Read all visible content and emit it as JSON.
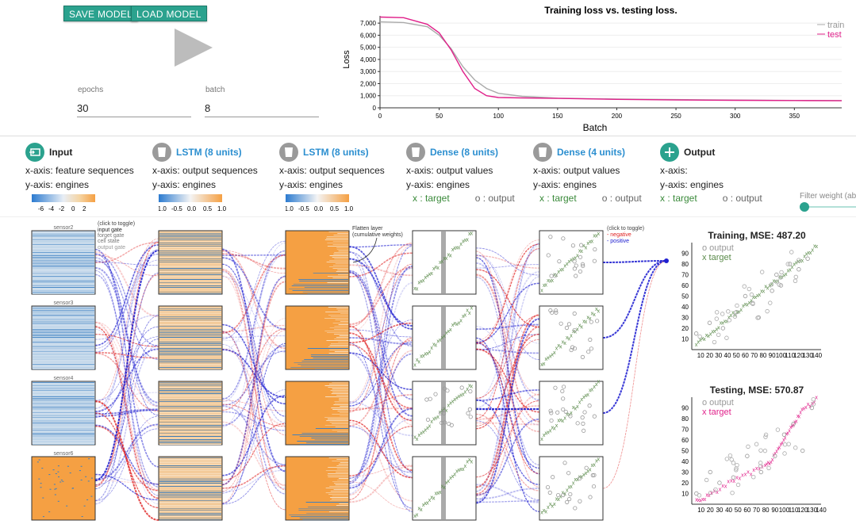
{
  "controls": {
    "save_label": "SAVE MODEL",
    "load_label": "LOAD MODEL",
    "epochs_label": "epochs",
    "epochs_value": "30",
    "batch_label": "batch",
    "batch_value": "8",
    "filter_label": "Filter weight (abs"
  },
  "loss_chart": {
    "title": "Training loss vs. testing loss.",
    "xlabel": "Batch",
    "ylabel": "Loss",
    "y_ticks": [
      "0",
      "1,000",
      "2,000",
      "3,000",
      "4,000",
      "5,000",
      "6,000",
      "7,000"
    ],
    "x_ticks": [
      "0",
      "50",
      "100",
      "150",
      "200",
      "250",
      "300",
      "350"
    ],
    "legend_train": "train",
    "legend_test": "test",
    "train_color": "#aaaaaa",
    "test_color": "#e0208a"
  },
  "chart_data": [
    {
      "type": "line",
      "title": "Training loss vs. testing loss.",
      "xlabel": "Batch",
      "ylabel": "Loss",
      "xlim": [
        0,
        390
      ],
      "ylim": [
        0,
        7600
      ],
      "series": [
        {
          "name": "train",
          "x": [
            0,
            20,
            40,
            50,
            60,
            70,
            80,
            90,
            100,
            120,
            150,
            200,
            250,
            300,
            350,
            390
          ],
          "values": [
            7100,
            7050,
            6700,
            6000,
            4900,
            3400,
            2300,
            1600,
            1200,
            950,
            800,
            720,
            680,
            640,
            610,
            600
          ]
        },
        {
          "name": "test",
          "x": [
            0,
            20,
            40,
            50,
            60,
            70,
            80,
            90,
            100,
            120,
            150,
            200,
            250,
            300,
            350,
            390
          ],
          "values": [
            7500,
            7450,
            6900,
            6200,
            4800,
            3000,
            1600,
            1000,
            850,
            820,
            780,
            700,
            650,
            620,
            600,
            580
          ]
        }
      ]
    },
    {
      "type": "scatter",
      "title": "Training, MSE: 487.20",
      "xlim": [
        0,
        145
      ],
      "ylim": [
        0,
        100
      ],
      "series": [
        {
          "name": "output",
          "x": [
            5,
            20,
            35,
            50,
            60,
            75,
            90,
            95,
            100,
            110,
            120,
            130
          ],
          "values": [
            15,
            25,
            20,
            35,
            50,
            30,
            55,
            70,
            60,
            80,
            75,
            85
          ]
        },
        {
          "name": "target",
          "x": [
            5,
            20,
            35,
            50,
            65,
            80,
            95,
            110,
            125,
            140
          ],
          "values": [
            5,
            15,
            25,
            35,
            45,
            55,
            65,
            75,
            85,
            97
          ]
        }
      ]
    },
    {
      "type": "scatter",
      "title": "Testing, MSE: 570.87",
      "xlim": [
        0,
        140
      ],
      "ylim": [
        0,
        100
      ],
      "series": [
        {
          "name": "output",
          "x": [
            5,
            20,
            30,
            45,
            60,
            75,
            90,
            100,
            110,
            120,
            130
          ],
          "values": [
            10,
            30,
            20,
            25,
            45,
            30,
            45,
            65,
            75,
            50,
            90
          ]
        },
        {
          "name": "target",
          "x": [
            5,
            20,
            40,
            60,
            80,
            90,
            100,
            110,
            120,
            135
          ],
          "values": [
            3,
            8,
            20,
            28,
            35,
            45,
            60,
            75,
            88,
            98
          ]
        }
      ]
    }
  ],
  "layers": [
    {
      "icon": "input-icon",
      "title": "Input",
      "x_axis": "x-axis: feature sequences",
      "y_axis": "y-axis: engines",
      "scale": [
        "-6",
        "-4",
        "-2",
        "0",
        "2"
      ]
    },
    {
      "icon": "lstm-icon",
      "title": "LSTM (8 units)",
      "x_axis": "x-axis: output sequences",
      "y_axis": "y-axis: engines",
      "scale": [
        "-1.0",
        "-0.5",
        "0.0",
        "0.5",
        "1.0"
      ]
    },
    {
      "icon": "lstm-icon",
      "title": "LSTM (8 units)",
      "x_axis": "x-axis: output sequences",
      "y_axis": "y-axis: engines",
      "scale": [
        "-1.0",
        "-0.5",
        "0.0",
        "0.5",
        "1.0"
      ]
    },
    {
      "icon": "dense-icon",
      "title": "Dense (8 units)",
      "x_axis": "x-axis: output values",
      "y_axis": "y-axis: engines",
      "legend_target": "x : target",
      "legend_output": "o : output"
    },
    {
      "icon": "dense-icon",
      "title": "Dense (4 units)",
      "x_axis": "x-axis: output values",
      "y_axis": "y-axis: engines",
      "legend_target": "x : target",
      "legend_output": "o : output"
    },
    {
      "icon": "add-icon",
      "title": "Output",
      "x_axis": "x-axis:",
      "y_axis": "y-axis: engines",
      "legend_target": "x : target",
      "legend_output": "o : output"
    }
  ],
  "sensors": [
    "sensor2",
    "sensor3",
    "sensor4",
    "sensor6"
  ],
  "gate_legend": {
    "toggle": "(click to toggle)",
    "input_gate": "input gate",
    "forget_gate": "forget gate",
    "cell_state": "cell state",
    "output_gate": "output gate"
  },
  "flatten_note": {
    "line1": "Flatten layer",
    "line2": "(cumulative weights)"
  },
  "sign_legend": {
    "toggle": "(click to toggle)",
    "negative": "negative",
    "positive": "positive"
  },
  "scatter_train": {
    "title": "Training, MSE: 487.20",
    "legend_output": "output",
    "legend_target": "target",
    "y_ticks": [
      "10",
      "20",
      "30",
      "40",
      "50",
      "60",
      "70",
      "80",
      "90"
    ],
    "x_ticks": [
      "10",
      "20",
      "30",
      "40",
      "50",
      "60",
      "70",
      "80",
      "90",
      "100",
      "110",
      "120",
      "130",
      "140"
    ]
  },
  "scatter_test": {
    "title": "Testing, MSE: 570.87",
    "legend_output": "output",
    "legend_target": "target",
    "y_ticks": [
      "10",
      "20",
      "30",
      "40",
      "50",
      "60",
      "70",
      "80",
      "90"
    ],
    "x_ticks": [
      "10",
      "20",
      "30",
      "40",
      "50",
      "60",
      "70",
      "80",
      "90",
      "100",
      "110",
      "120",
      "130",
      "140"
    ]
  },
  "colors": {
    "accent": "#2ba28e",
    "blue": "#2c7bd0",
    "orange": "#f5a043",
    "positive": "#2020d0",
    "negative": "#e02020",
    "target_green": "#5a8a4a",
    "target_pink": "#e0208a"
  }
}
